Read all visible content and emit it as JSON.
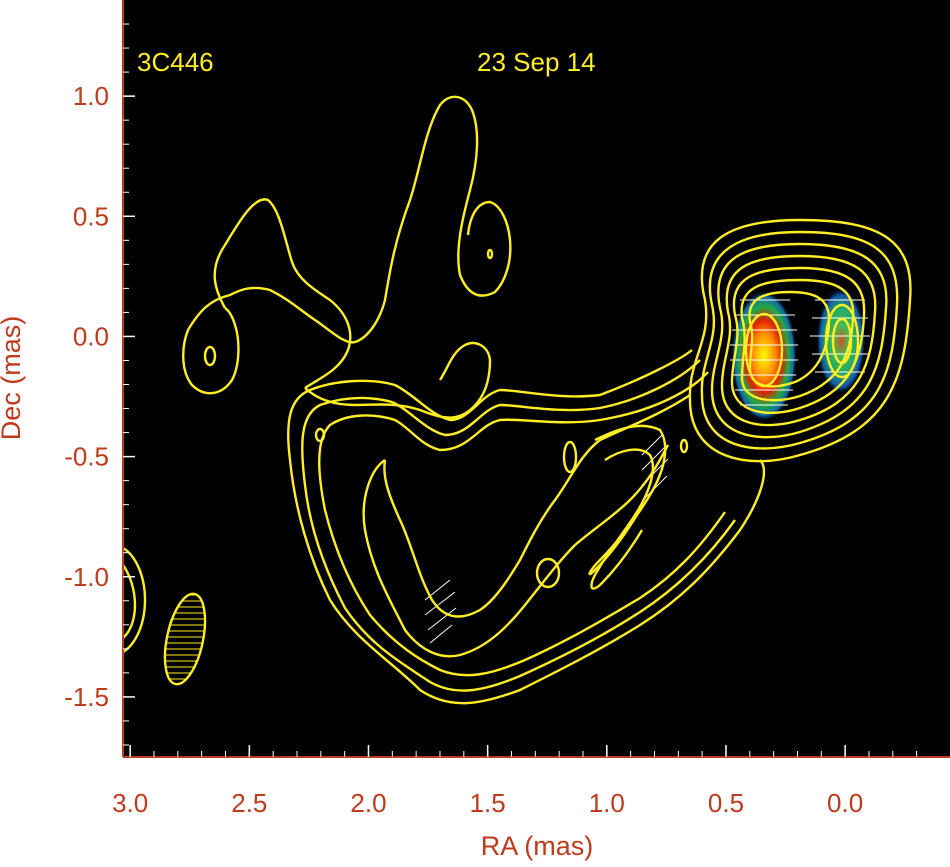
{
  "chart_data": {
    "type": "contour",
    "title": "",
    "annotations": {
      "source": "3C446",
      "epoch": "23 Sep 14"
    },
    "xlabel": "RA (mas)",
    "ylabel": "Dec (mas)",
    "xlim": [
      3.03,
      -0.44
    ],
    "ylim": [
      -1.75,
      1.4
    ],
    "x_reversed": true,
    "xticks": [
      3.0,
      2.5,
      2.0,
      1.5,
      1.0,
      0.5,
      0.0
    ],
    "xtick_labels": [
      "3.0",
      "2.5",
      "2.0",
      "1.5",
      "1.0",
      "0.5",
      "0.0"
    ],
    "yticks": [
      1.0,
      0.5,
      0.0,
      -0.5,
      -1.0,
      -1.5
    ],
    "ytick_labels": [
      "1.0",
      "0.5",
      "0.0",
      "-0.5",
      "-1.0",
      "-1.5"
    ],
    "grid": false,
    "components": [
      {
        "ra": 0.33,
        "dec": -0.07,
        "kind": "bright core"
      },
      {
        "ra": 0.0,
        "dec": 0.0,
        "kind": "compact component"
      }
    ],
    "beam": {
      "ra": 2.8,
      "dec": -1.26
    },
    "colors": {
      "plot_bg": "#000000",
      "contour": "#ffee22",
      "axis_text": "#c03a1e",
      "annotation_text": "#ffee22",
      "frame": "#c03a1e",
      "polarization_ticks": "#ffffff"
    }
  }
}
